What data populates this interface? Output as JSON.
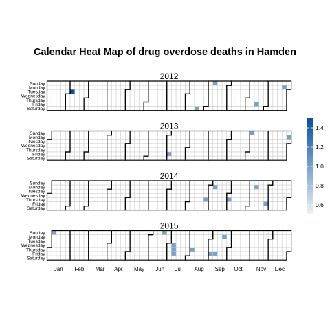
{
  "chart_data": {
    "type": "heatmap",
    "title": "Calendar Heat Map of drug overdose deaths in Hamden",
    "years": [
      2012,
      2013,
      2014,
      2015
    ],
    "weekdays": [
      "Sunday",
      "Monday",
      "Tuesday",
      "Wednesday",
      "Thursday",
      "Friday",
      "Saturday"
    ],
    "months": [
      "Jan",
      "Feb",
      "Mar",
      "Apr",
      "May",
      "Jun",
      "Jul",
      "Aug",
      "Sep",
      "Oct",
      "Nov",
      "Dec"
    ],
    "legend": {
      "placement": "right",
      "ticks": [
        0.6,
        0.8,
        1.0,
        1.2,
        1.4
      ],
      "range": [
        0.5,
        1.5
      ],
      "low_color": "#eef1f8",
      "high_color": "#08509a"
    },
    "values": [
      {
        "date": "2012-02-07",
        "value": 1.5
      },
      {
        "date": "2012-08-18",
        "value": 1
      },
      {
        "date": "2012-09-09",
        "value": 1
      },
      {
        "date": "2012-11-16",
        "value": 1
      },
      {
        "date": "2012-12-24",
        "value": 1
      },
      {
        "date": "2013-07-05",
        "value": 1
      },
      {
        "date": "2013-11-03",
        "value": 1
      },
      {
        "date": "2013-12-30",
        "value": 1
      },
      {
        "date": "2014-08-28",
        "value": 1
      },
      {
        "date": "2014-09-08",
        "value": 1
      },
      {
        "date": "2014-10-02",
        "value": 1
      },
      {
        "date": "2014-11-10",
        "value": 1
      },
      {
        "date": "2014-11-28",
        "value": 1
      },
      {
        "date": "2015-01-04",
        "value": 1
      },
      {
        "date": "2015-06-21",
        "value": 1
      },
      {
        "date": "2015-07-08",
        "value": 1
      },
      {
        "date": "2015-07-09",
        "value": 1
      },
      {
        "date": "2015-07-10",
        "value": 1
      },
      {
        "date": "2015-08-06",
        "value": 1
      },
      {
        "date": "2015-09-04",
        "value": 1
      },
      {
        "date": "2015-09-11",
        "value": 1
      },
      {
        "date": "2015-09-21",
        "value": 1
      }
    ]
  }
}
